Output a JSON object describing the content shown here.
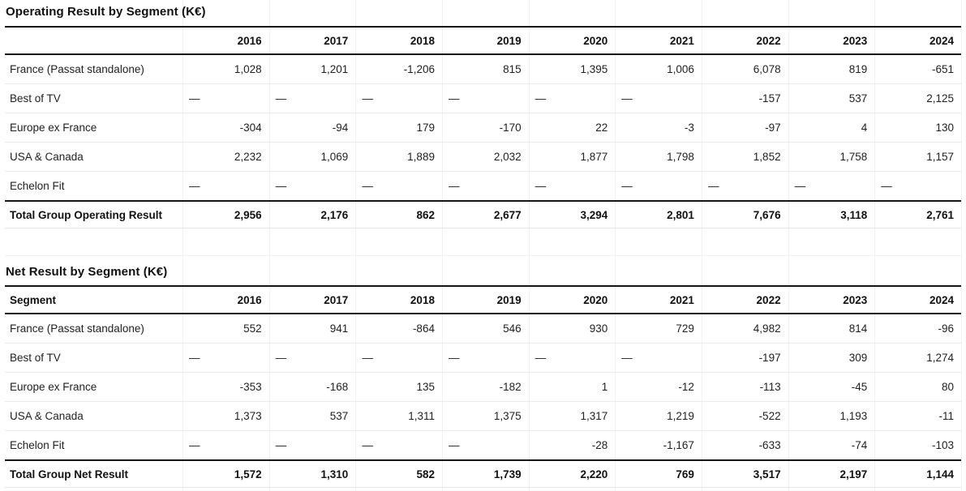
{
  "tables": [
    {
      "title": "Operating Result by Segment (K€)",
      "segment_header": "",
      "years": [
        "2016",
        "2017",
        "2018",
        "2019",
        "2020",
        "2021",
        "2022",
        "2023",
        "2024"
      ],
      "rows": [
        {
          "label": "France (Passat standalone)",
          "values": [
            "1,028",
            "1,201",
            "-1,206",
            "815",
            "1,395",
            "1,006",
            "6,078",
            "819",
            "-651"
          ]
        },
        {
          "label": "Best of TV",
          "values": [
            "—",
            "—",
            "—",
            "—",
            "—",
            "—",
            "-157",
            "537",
            "2,125"
          ]
        },
        {
          "label": "Europe ex France",
          "values": [
            "-304",
            "-94",
            "179",
            "-170",
            "22",
            "-3",
            "-97",
            "4",
            "130"
          ]
        },
        {
          "label": "USA & Canada",
          "values": [
            "2,232",
            "1,069",
            "1,889",
            "2,032",
            "1,877",
            "1,798",
            "1,852",
            "1,758",
            "1,157"
          ]
        },
        {
          "label": "Echelon Fit",
          "values": [
            "—",
            "—",
            "—",
            "—",
            "—",
            "—",
            "—",
            "—",
            "—"
          ]
        }
      ],
      "total": {
        "label": "Total Group Operating Result",
        "values": [
          "2,956",
          "2,176",
          "862",
          "2,677",
          "3,294",
          "2,801",
          "7,676",
          "3,118",
          "2,761"
        ]
      }
    },
    {
      "title": "Net Result by Segment (K€)",
      "segment_header": "Segment",
      "years": [
        "2016",
        "2017",
        "2018",
        "2019",
        "2020",
        "2021",
        "2022",
        "2023",
        "2024"
      ],
      "rows": [
        {
          "label": "France (Passat standalone)",
          "values": [
            "552",
            "941",
            "-864",
            "546",
            "930",
            "729",
            "4,982",
            "814",
            "-96"
          ]
        },
        {
          "label": "Best of TV",
          "values": [
            "—",
            "—",
            "—",
            "—",
            "—",
            "—",
            "-197",
            "309",
            "1,274"
          ]
        },
        {
          "label": "Europe ex France",
          "values": [
            "-353",
            "-168",
            "135",
            "-182",
            "1",
            "-12",
            "-113",
            "-45",
            "80"
          ]
        },
        {
          "label": "USA & Canada",
          "values": [
            "1,373",
            "537",
            "1,311",
            "1,375",
            "1,317",
            "1,219",
            "-522",
            "1,193",
            "-11"
          ]
        },
        {
          "label": "Echelon Fit",
          "values": [
            "—",
            "—",
            "—",
            "—",
            "-28",
            "-1,167",
            "-633",
            "-74",
            "-103"
          ]
        }
      ],
      "total": {
        "label": "Total Group Net Result",
        "values": [
          "1,572",
          "1,310",
          "582",
          "1,739",
          "2,220",
          "769",
          "3,517",
          "2,197",
          "1,144"
        ]
      }
    }
  ],
  "dash_glyph": "—"
}
